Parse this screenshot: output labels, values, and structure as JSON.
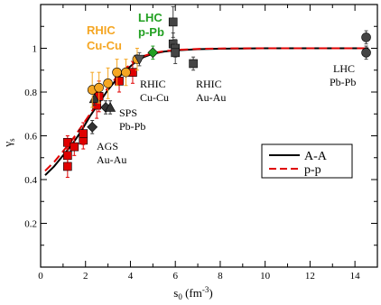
{
  "chart_data": {
    "type": "scatter",
    "xlabel": "s",
    "xlabel_sub": "0",
    "xlabel_unit": "(fm",
    "xlabel_exp": "-3",
    "xlabel_close": ")",
    "ylabel": "γ",
    "ylabel_sub": "s",
    "xlim": [
      0,
      15
    ],
    "ylim": [
      0,
      1.2
    ],
    "xticks": [
      0,
      2,
      4,
      6,
      8,
      10,
      12,
      14
    ],
    "yticks": [
      0.2,
      0.4,
      0.6,
      0.8,
      1.0
    ],
    "ytick_labels": [
      "0.2",
      "0.4",
      "0.6",
      "0.8",
      "1"
    ],
    "grid": false,
    "legend_position": "center-right",
    "curves": [
      {
        "name": "A-A",
        "color": "#000000",
        "style": "solid",
        "x": [
          0.2,
          0.6,
          1.0,
          1.4,
          1.8,
          2.2,
          2.6,
          3.0,
          3.4,
          3.8,
          4.2,
          4.6,
          5.0,
          5.5,
          6.0,
          7.0,
          8.0,
          10.0,
          12.0,
          14.6
        ],
        "y": [
          0.42,
          0.46,
          0.51,
          0.56,
          0.62,
          0.69,
          0.75,
          0.81,
          0.86,
          0.9,
          0.935,
          0.96,
          0.975,
          0.985,
          0.99,
          0.996,
          0.998,
          1.0,
          1.0,
          1.0
        ]
      },
      {
        "name": "p-p",
        "color": "#e00000",
        "style": "dashed",
        "x": [
          0.2,
          0.6,
          1.0,
          1.4,
          1.8,
          2.2,
          2.6,
          3.0,
          3.4,
          3.8,
          4.2,
          4.6,
          5.0,
          5.5,
          6.0,
          7.0,
          8.0,
          10.0,
          12.0,
          14.6
        ],
        "y": [
          0.44,
          0.48,
          0.53,
          0.58,
          0.64,
          0.7,
          0.76,
          0.82,
          0.87,
          0.91,
          0.94,
          0.965,
          0.978,
          0.987,
          0.992,
          0.997,
          0.999,
          1.0,
          1.0,
          1.0
        ]
      }
    ],
    "series": [
      {
        "name": "AGS Au-Au",
        "marker": "square",
        "color": "#e00000",
        "points": [
          [
            1.2,
            0.57,
            0.03
          ],
          [
            1.2,
            0.51,
            0.04
          ],
          [
            1.2,
            0.46,
            0.05
          ],
          [
            1.5,
            0.55,
            0.04
          ],
          [
            1.9,
            0.58,
            0.04
          ],
          [
            1.9,
            0.61,
            0.05
          ],
          [
            2.5,
            0.74,
            0.06
          ],
          [
            2.6,
            0.78,
            0.07
          ],
          [
            3.5,
            0.85,
            0.05
          ],
          [
            4.1,
            0.89,
            0.05
          ]
        ]
      },
      {
        "name": "SPS Pb-Pb",
        "marker": "diamond",
        "color": "#333333",
        "points": [
          [
            2.3,
            0.64,
            0.03
          ],
          [
            2.9,
            0.73,
            0.03
          ]
        ]
      },
      {
        "name": "SPS Pb-Pb triangles",
        "marker": "triangle",
        "color": "#333333",
        "points": [
          [
            2.4,
            0.77,
            0.03
          ],
          [
            3.1,
            0.73,
            0.03
          ]
        ]
      },
      {
        "name": "RHIC Cu-Cu",
        "marker": "circle",
        "color": "#f5a623",
        "points": [
          [
            2.3,
            0.81,
            0.08
          ],
          [
            2.6,
            0.82,
            0.07
          ],
          [
            3.0,
            0.84,
            0.07
          ],
          [
            3.4,
            0.89,
            0.06
          ],
          [
            3.8,
            0.89,
            0.06
          ],
          [
            4.3,
            0.95,
            0.05
          ]
        ]
      },
      {
        "name": "RHIC Cu-Cu black",
        "marker": "triangle-down",
        "color": "#555555",
        "points": [
          [
            4.4,
            0.95,
            0.03
          ]
        ]
      },
      {
        "name": "LHC p-Pb",
        "marker": "diamond",
        "color": "#22a022",
        "points": [
          [
            5.0,
            0.98,
            0.03
          ]
        ]
      },
      {
        "name": "RHIC Au-Au",
        "marker": "square",
        "color": "#444444",
        "points": [
          [
            5.9,
            1.12,
            0.07
          ],
          [
            5.9,
            1.02,
            0.05
          ],
          [
            6.0,
            1.0,
            0.04
          ],
          [
            6.0,
            0.98,
            0.05
          ],
          [
            6.8,
            0.93,
            0.03
          ]
        ]
      },
      {
        "name": "LHC Pb-Pb",
        "marker": "circle",
        "color": "#444444",
        "points": [
          [
            14.5,
            1.05,
            0.03
          ],
          [
            14.5,
            0.98,
            0.03
          ]
        ]
      }
    ],
    "annotations": [
      {
        "text": "RHIC",
        "color": "#f5a623",
        "bold": true
      },
      {
        "text": "Cu-Cu",
        "color": "#f5a623",
        "bold": true
      },
      {
        "text": "LHC",
        "color": "#22a022",
        "bold": true
      },
      {
        "text": "p-Pb",
        "color": "#22a022",
        "bold": true
      },
      {
        "text": "RHIC",
        "color": "#000000",
        "bold": false
      },
      {
        "text": "Cu-Cu",
        "color": "#000000",
        "bold": false
      },
      {
        "text": "RHIC",
        "color": "#000000",
        "bold": false
      },
      {
        "text": "Au-Au",
        "color": "#000000",
        "bold": false
      },
      {
        "text": "SPS",
        "color": "#000000",
        "bold": false
      },
      {
        "text": "Pb-Pb",
        "color": "#000000",
        "bold": false
      },
      {
        "text": "AGS",
        "color": "#000000",
        "bold": false
      },
      {
        "text": "Au-Au",
        "color": "#000000",
        "bold": false
      },
      {
        "text": "LHC",
        "color": "#000000",
        "bold": false
      },
      {
        "text": "Pb-Pb",
        "color": "#000000",
        "bold": false
      }
    ],
    "legend": [
      {
        "label": "A-A",
        "color": "#000000",
        "style": "solid"
      },
      {
        "label": "p-p",
        "color": "#e00000",
        "style": "dashed"
      }
    ]
  }
}
